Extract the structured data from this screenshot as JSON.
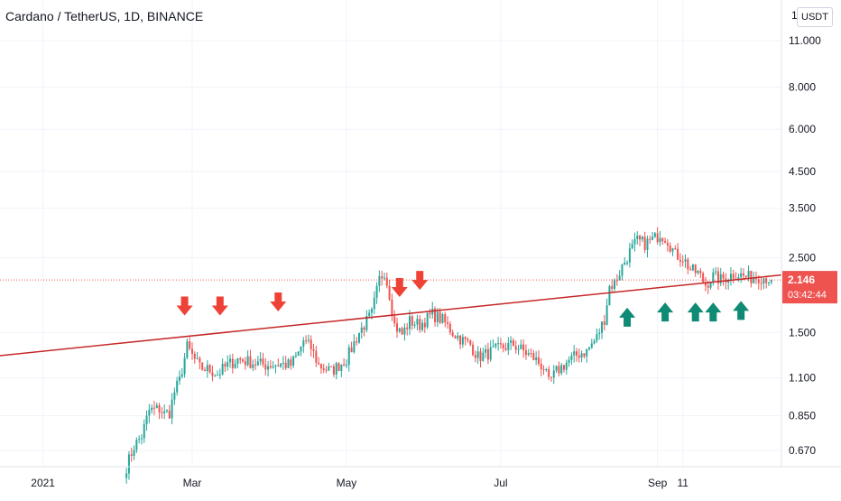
{
  "header": {
    "symbol_title": "Cardano / TetherUS, 1D, BINANCE",
    "currency_button": "USDT"
  },
  "price_scale": {
    "top_clipped_label": "1",
    "last_price_label": "2.146",
    "countdown_label": "03:42:44",
    "last_price_color": "#ef5350"
  },
  "colors": {
    "up_candle": "#26a69a",
    "down_candle": "#ef5350",
    "trendline": "#c62828",
    "resistance_arrow": "#ef4236",
    "support_arrow": "#0f8a74"
  },
  "chart_data": {
    "type": "candlestick",
    "title": "Cardano / TetherUS, 1D, BINANCE",
    "xlabel": "",
    "ylabel": "",
    "y_scale": "log",
    "ylim": [
      0.6,
      14.5
    ],
    "y_ticks": [
      0.67,
      0.85,
      1.1,
      1.5,
      2.5,
      3.5,
      4.5,
      6.0,
      8.0,
      11.0
    ],
    "y_tick_labels": [
      "0.670",
      "0.850",
      "1.100",
      "1.500",
      "2.500",
      "3.500",
      "4.500",
      "6.000",
      "8.000",
      "11.000"
    ],
    "xlim": [
      "2020-12-15",
      "2021-10-20"
    ],
    "x_ticks": [
      {
        "date": "2021-01-01",
        "label": "2021"
      },
      {
        "date": "2021-03-01",
        "label": "Mar"
      },
      {
        "date": "2021-05-01",
        "label": "May"
      },
      {
        "date": "2021-07-01",
        "label": "Jul"
      },
      {
        "date": "2021-09-01",
        "label": "Sep"
      },
      {
        "date": "2021-09-11",
        "label": "11"
      }
    ],
    "grid": true,
    "last_price": 2.146,
    "price_path": [
      [
        "2021-02-03",
        0.6
      ],
      [
        "2021-02-06",
        0.69
      ],
      [
        "2021-02-09",
        0.74
      ],
      [
        "2021-02-12",
        0.88
      ],
      [
        "2021-02-16",
        0.89
      ],
      [
        "2021-02-18",
        0.86
      ],
      [
        "2021-02-20",
        0.87
      ],
      [
        "2021-02-22",
        1.0
      ],
      [
        "2021-02-24",
        1.08
      ],
      [
        "2021-02-27",
        1.36
      ],
      [
        "2021-03-01",
        1.28
      ],
      [
        "2021-03-04",
        1.18
      ],
      [
        "2021-03-08",
        1.16
      ],
      [
        "2021-03-11",
        1.13
      ],
      [
        "2021-03-15",
        1.2
      ],
      [
        "2021-03-19",
        1.25
      ],
      [
        "2021-03-25",
        1.22
      ],
      [
        "2021-03-30",
        1.2
      ],
      [
        "2021-04-05",
        1.21
      ],
      [
        "2021-04-09",
        1.2
      ],
      [
        "2021-04-12",
        1.3
      ],
      [
        "2021-04-14",
        1.42
      ],
      [
        "2021-04-17",
        1.35
      ],
      [
        "2021-04-20",
        1.2
      ],
      [
        "2021-04-25",
        1.15
      ],
      [
        "2021-05-01",
        1.25
      ],
      [
        "2021-05-06",
        1.5
      ],
      [
        "2021-05-11",
        1.7
      ],
      [
        "2021-05-14",
        2.15
      ],
      [
        "2021-05-16",
        2.28
      ],
      [
        "2021-05-18",
        1.95
      ],
      [
        "2021-05-20",
        1.58
      ],
      [
        "2021-05-23",
        1.48
      ],
      [
        "2021-05-26",
        1.62
      ],
      [
        "2021-05-30",
        1.58
      ],
      [
        "2021-06-04",
        1.7
      ],
      [
        "2021-06-08",
        1.63
      ],
      [
        "2021-06-12",
        1.5
      ],
      [
        "2021-06-16",
        1.42
      ],
      [
        "2021-06-19",
        1.38
      ],
      [
        "2021-06-22",
        1.27
      ],
      [
        "2021-06-26",
        1.3
      ],
      [
        "2021-07-01",
        1.35
      ],
      [
        "2021-07-06",
        1.38
      ],
      [
        "2021-07-10",
        1.32
      ],
      [
        "2021-07-14",
        1.26
      ],
      [
        "2021-07-18",
        1.18
      ],
      [
        "2021-07-20",
        1.06
      ],
      [
        "2021-07-23",
        1.15
      ],
      [
        "2021-07-27",
        1.22
      ],
      [
        "2021-08-01",
        1.3
      ],
      [
        "2021-08-04",
        1.32
      ],
      [
        "2021-08-08",
        1.45
      ],
      [
        "2021-08-11",
        1.65
      ],
      [
        "2021-08-13",
        2.05
      ],
      [
        "2021-08-15",
        2.1
      ],
      [
        "2021-08-18",
        2.35
      ],
      [
        "2021-08-21",
        2.6
      ],
      [
        "2021-08-24",
        2.8
      ],
      [
        "2021-08-27",
        2.75
      ],
      [
        "2021-08-31",
        2.85
      ],
      [
        "2021-09-02",
        2.95
      ],
      [
        "2021-09-05",
        2.82
      ],
      [
        "2021-09-08",
        2.55
      ],
      [
        "2021-09-11",
        2.5
      ],
      [
        "2021-09-14",
        2.3
      ],
      [
        "2021-09-17",
        2.25
      ],
      [
        "2021-09-20",
        2.08
      ],
      [
        "2021-09-23",
        2.2
      ],
      [
        "2021-09-26",
        2.15
      ],
      [
        "2021-09-29",
        2.2
      ],
      [
        "2021-10-02",
        2.25
      ],
      [
        "2021-10-05",
        2.2
      ],
      [
        "2021-10-08",
        2.18
      ],
      [
        "2021-10-11",
        2.2
      ],
      [
        "2021-10-14",
        2.18
      ],
      [
        "2021-10-16",
        2.146
      ]
    ],
    "trendline": {
      "start": [
        "2020-12-15",
        1.28
      ],
      "end": [
        "2021-10-20",
        2.22
      ]
    },
    "resistance_arrows": [
      [
        "2021-02-26",
        1.78
      ],
      [
        "2021-03-12",
        1.78
      ],
      [
        "2021-04-04",
        1.83
      ],
      [
        "2021-05-22",
        2.02
      ],
      [
        "2021-05-30",
        2.12
      ]
    ],
    "support_arrows": [
      [
        "2021-08-20",
        1.68
      ],
      [
        "2021-09-04",
        1.74
      ],
      [
        "2021-09-16",
        1.74
      ],
      [
        "2021-09-23",
        1.74
      ],
      [
        "2021-10-04",
        1.76
      ]
    ]
  }
}
